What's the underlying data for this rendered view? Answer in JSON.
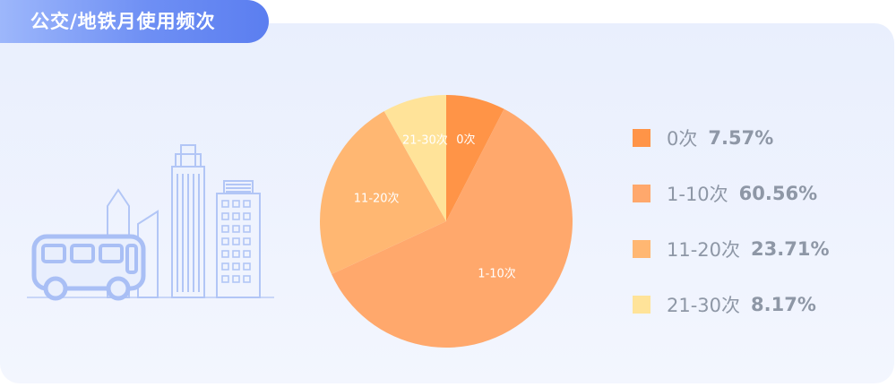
{
  "header": {
    "title": "公交/地铁月使用频次"
  },
  "chart_data": {
    "type": "pie",
    "categories": [
      "0次",
      "1-10次",
      "11-20次",
      "21-30次"
    ],
    "values": [
      7.57,
      60.56,
      23.71,
      8.17
    ],
    "value_labels": [
      "7.57%",
      "60.56%",
      "23.71%",
      "8.17%"
    ],
    "colors": [
      "#ff9447",
      "#ffa86c",
      "#ffb772",
      "#ffe399"
    ],
    "legend_position": "right",
    "start_angle_deg": 0,
    "direction": "clockwise"
  }
}
